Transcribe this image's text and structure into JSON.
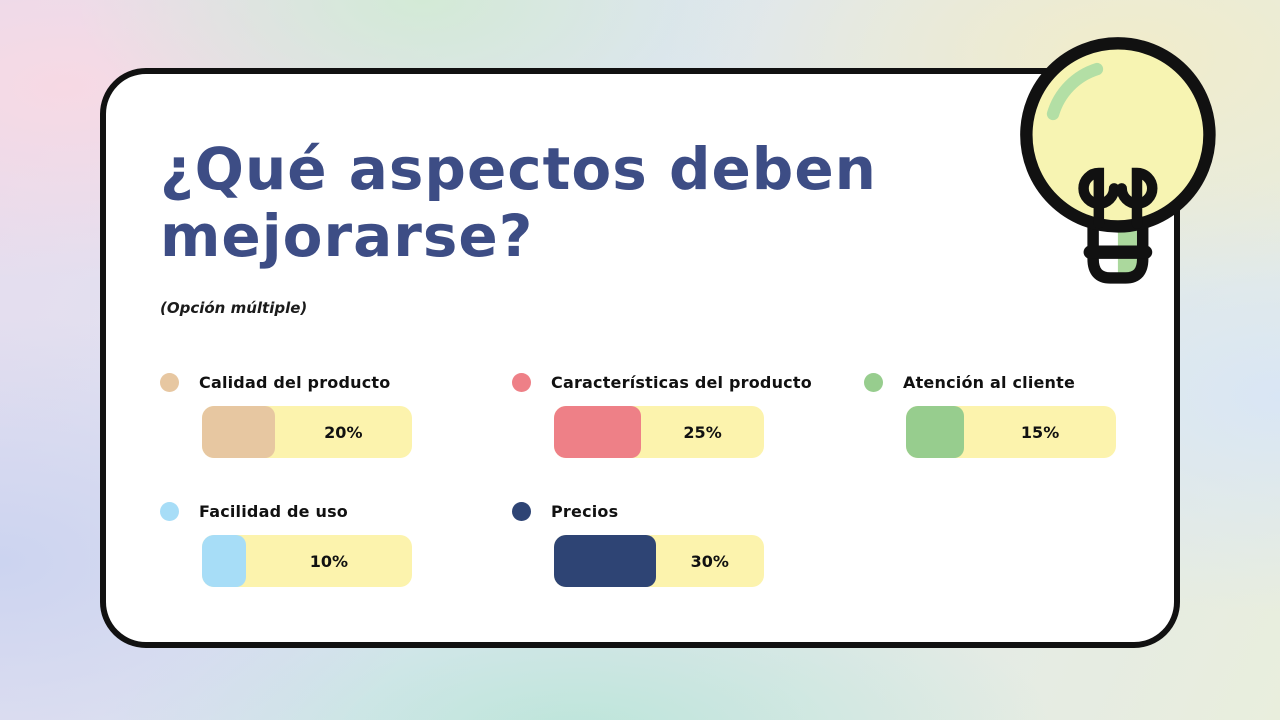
{
  "slide": {
    "title": "¿Qué aspectos deben mejorarse?",
    "subtitle": "(Opción múltiple)",
    "title_color": "#3d4d85",
    "card_background": "#ffffff",
    "card_border_color": "#111111",
    "decoration": "lightbulb-icon"
  },
  "chart_data": {
    "type": "bar",
    "orientation": "horizontal",
    "title": "¿Qué aspectos deben mejorarse?",
    "subtitle": "(Opción múltiple)",
    "categories": [
      "Calidad del producto",
      "Características del producto",
      "Atención al cliente",
      "Facilidad de uso",
      "Precios"
    ],
    "values": [
      20,
      25,
      15,
      10,
      30
    ],
    "labels": [
      "20%",
      "25%",
      "15%",
      "10%",
      "30%"
    ],
    "unit": "%",
    "colors": [
      "#e7c7a1",
      "#ee8087",
      "#97cd8e",
      "#a7ddf7",
      "#2e4474"
    ],
    "track_color": "#fcf3ad",
    "value_range": [
      0,
      100
    ],
    "grid": false,
    "legend_position": "inline-dots"
  }
}
